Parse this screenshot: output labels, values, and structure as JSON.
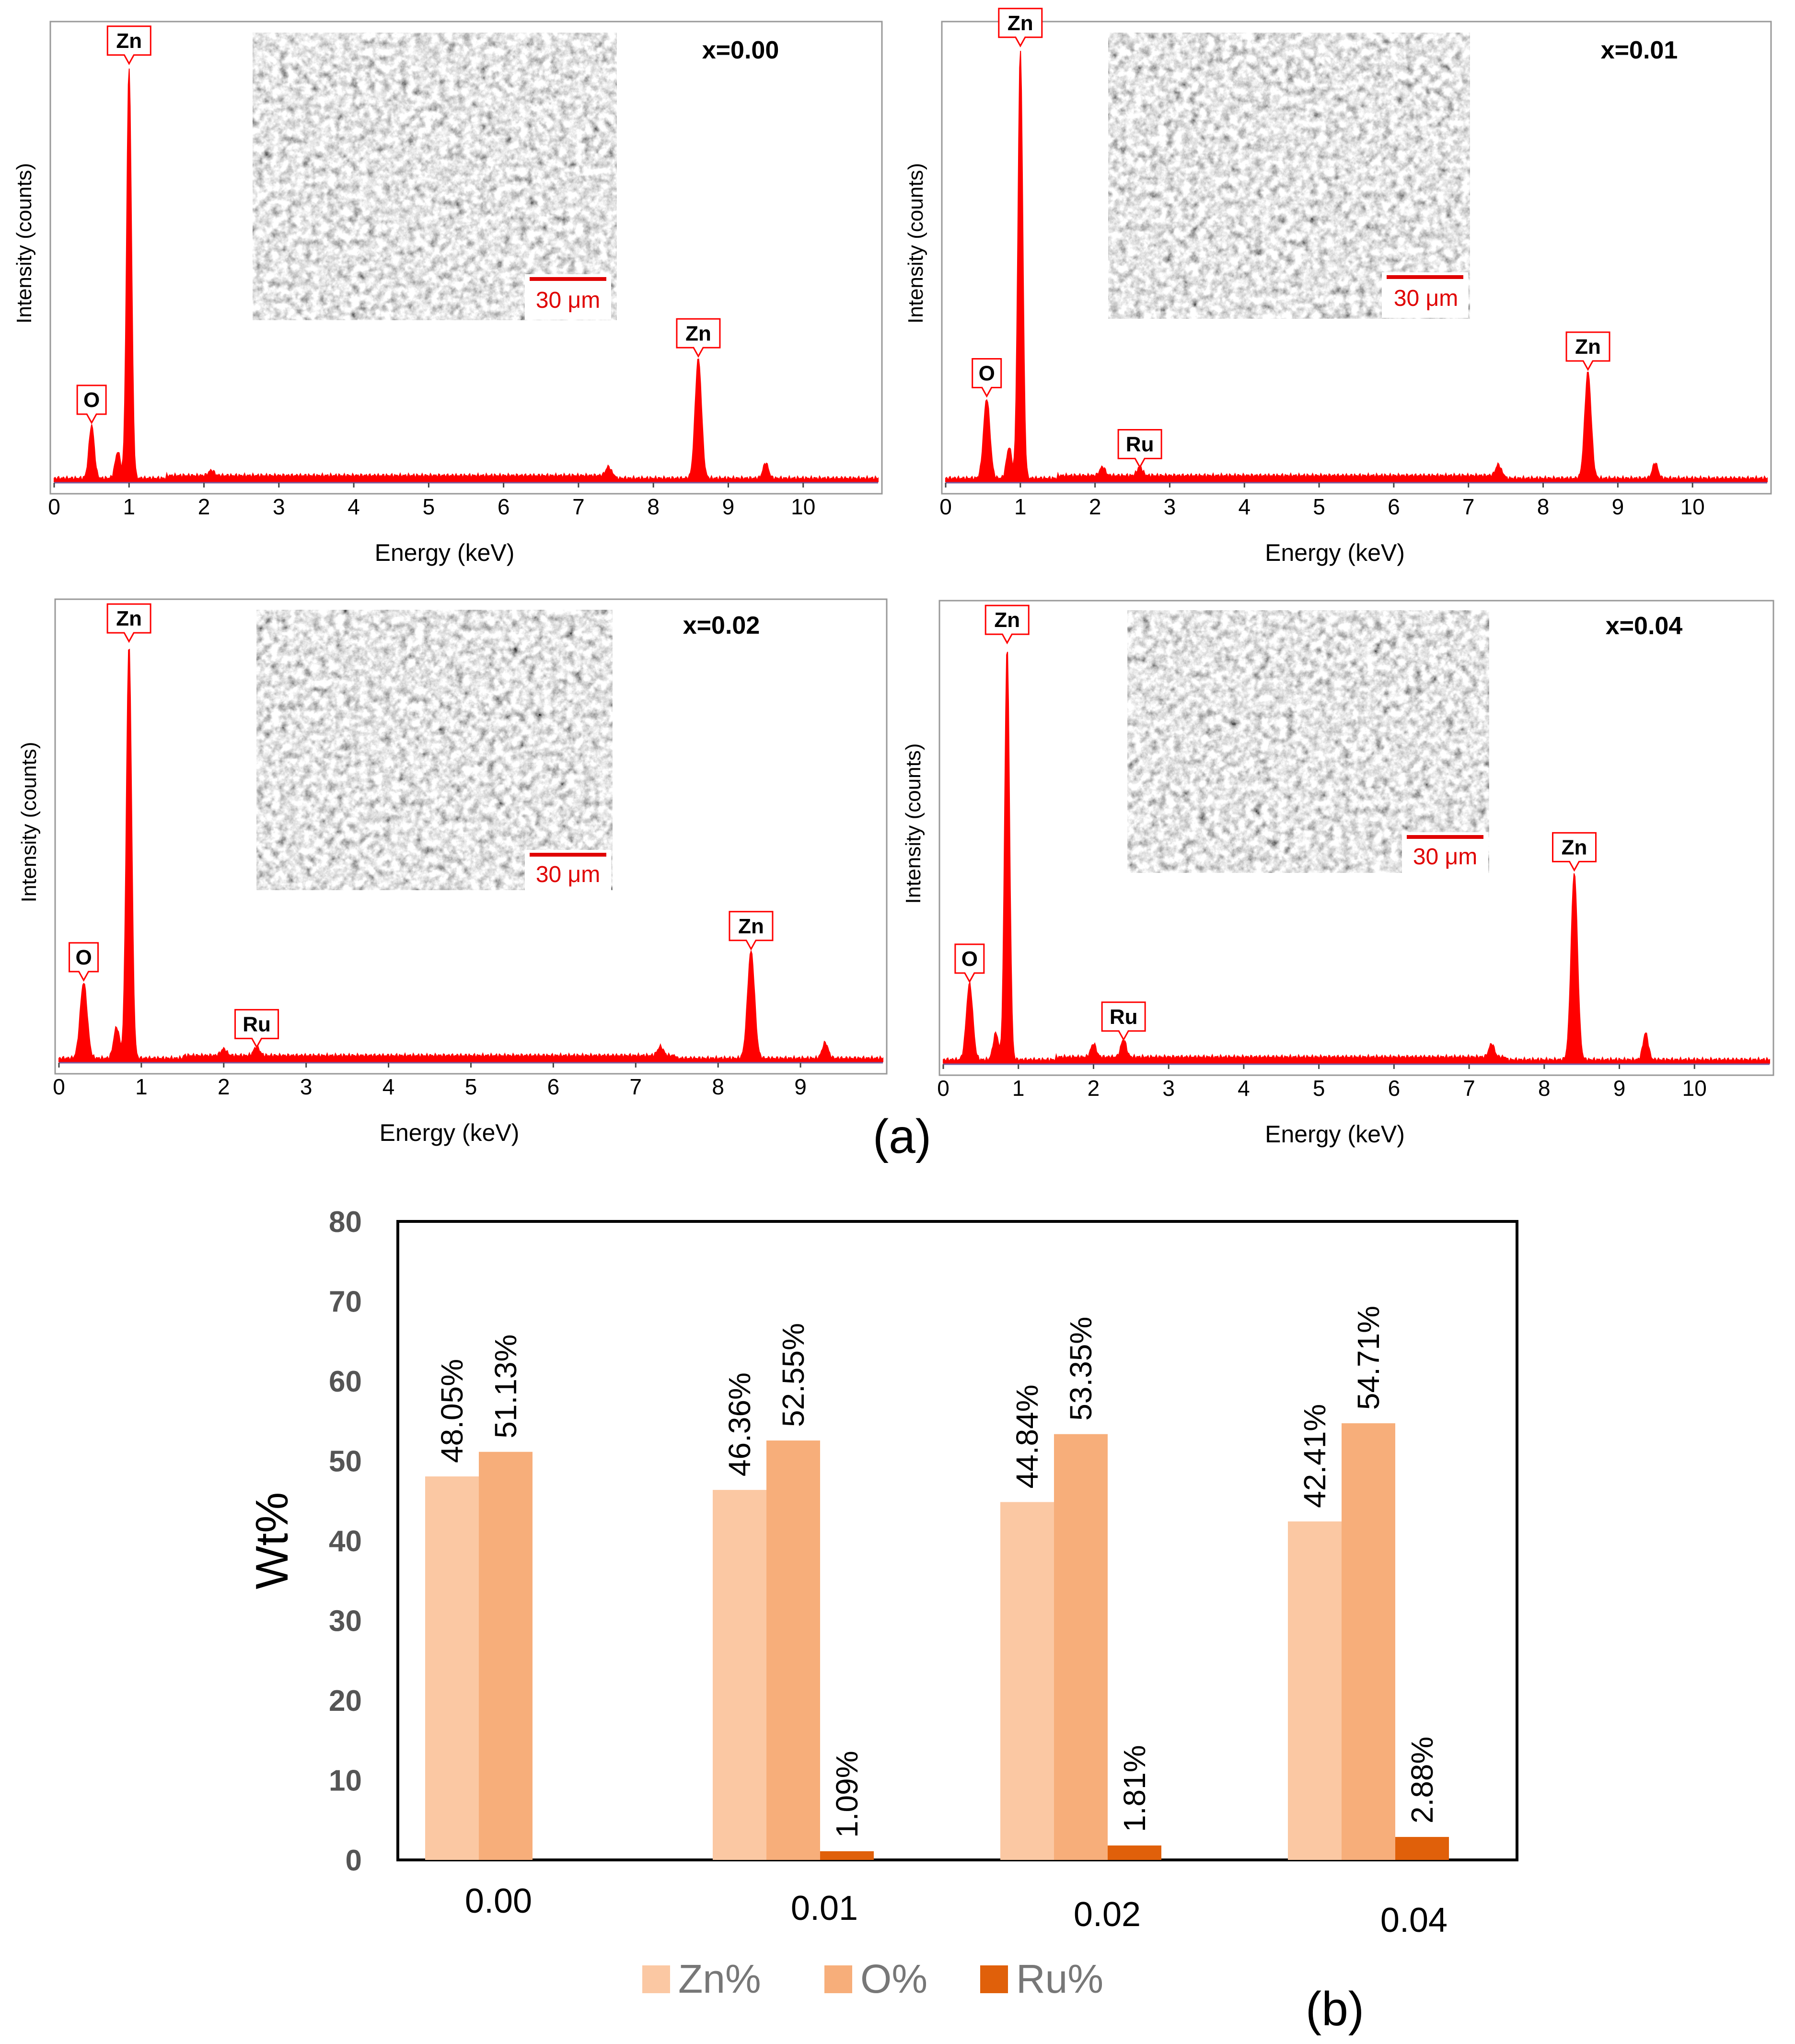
{
  "panel_a_label": "(a)",
  "panel_b_label": "(b)",
  "colors": {
    "spectrum": "#ff0000",
    "zn": "#fbc8a3",
    "o": "#f7ae7a",
    "ru": "#e0600a"
  },
  "chart_data": [
    {
      "type": "line",
      "title": "x=0.00",
      "xlabel": "Energy (keV)",
      "ylabel": "Intensity (counts)",
      "xlim": [
        0,
        11
      ],
      "xticks": [
        "0",
        "1",
        "2",
        "3",
        "4",
        "5",
        "6",
        "7",
        "8",
        "9",
        "10"
      ],
      "peaks": [
        {
          "label": "O",
          "energy": 0.5,
          "height": 0.12
        },
        {
          "label": "Zn",
          "energy": 1.0,
          "height": 0.93
        },
        {
          "label": "Zn",
          "energy": 8.6,
          "height": 0.27
        }
      ],
      "minor_peaks": [
        {
          "energy": 0.85,
          "height": 0.06
        },
        {
          "energy": 2.1,
          "height": 0.012
        },
        {
          "energy": 7.4,
          "height": 0.02
        },
        {
          "energy": 9.5,
          "height": 0.035
        }
      ],
      "scale_bar": "30 μm"
    },
    {
      "type": "line",
      "title": "x=0.01",
      "xlabel": "Energy (keV)",
      "ylabel": "Intensity (counts)",
      "xlim": [
        0,
        11
      ],
      "xticks": [
        "0",
        "1",
        "2",
        "3",
        "4",
        "5",
        "6",
        "7",
        "8",
        "9",
        "10"
      ],
      "peaks": [
        {
          "label": "O",
          "energy": 0.55,
          "height": 0.18
        },
        {
          "label": "Zn",
          "energy": 1.0,
          "height": 0.97
        },
        {
          "label": "Ru",
          "energy": 2.6,
          "height": 0.02
        },
        {
          "label": "Zn",
          "energy": 8.6,
          "height": 0.24
        }
      ],
      "minor_peaks": [
        {
          "energy": 0.85,
          "height": 0.07
        },
        {
          "energy": 2.1,
          "height": 0.02
        },
        {
          "energy": 7.4,
          "height": 0.025
        },
        {
          "energy": 9.5,
          "height": 0.035
        }
      ],
      "scale_bar": "30 μm"
    },
    {
      "type": "line",
      "title": "x=0.02",
      "xlabel": "Energy (keV)",
      "ylabel": "Intensity (counts)",
      "xlim": [
        0,
        10
      ],
      "xticks": [
        "0",
        "1",
        "2",
        "3",
        "4",
        "5",
        "6",
        "7",
        "8",
        "9"
      ],
      "peaks": [
        {
          "label": "O",
          "energy": 0.3,
          "height": 0.17
        },
        {
          "label": "Zn",
          "energy": 0.85,
          "height": 0.93
        },
        {
          "label": "Ru",
          "energy": 2.4,
          "height": 0.02
        },
        {
          "label": "Zn",
          "energy": 8.4,
          "height": 0.24
        }
      ],
      "minor_peaks": [
        {
          "energy": 0.7,
          "height": 0.07
        },
        {
          "energy": 2.0,
          "height": 0.015
        },
        {
          "energy": 7.3,
          "height": 0.02
        },
        {
          "energy": 9.3,
          "height": 0.035
        }
      ],
      "scale_bar": "30 μm"
    },
    {
      "type": "line",
      "title": "x=0.04",
      "xlabel": "Energy (keV)",
      "ylabel": "Intensity (counts)",
      "xlim": [
        0,
        11
      ],
      "xticks": [
        "0",
        "1",
        "2",
        "3",
        "4",
        "5",
        "6",
        "7",
        "8",
        "9",
        "10"
      ],
      "peaks": [
        {
          "label": "O",
          "energy": 0.35,
          "height": 0.17
        },
        {
          "label": "Zn",
          "energy": 0.85,
          "height": 0.93
        },
        {
          "label": "Ru",
          "energy": 2.4,
          "height": 0.04
        },
        {
          "label": "Zn",
          "energy": 8.4,
          "height": 0.42
        }
      ],
      "minor_peaks": [
        {
          "energy": 0.7,
          "height": 0.06
        },
        {
          "energy": 2.0,
          "height": 0.03
        },
        {
          "energy": 7.3,
          "height": 0.03
        },
        {
          "energy": 9.35,
          "height": 0.06
        }
      ],
      "scale_bar": "30 μm"
    },
    {
      "type": "bar",
      "ylabel": "Wt%",
      "ylim": [
        0,
        80
      ],
      "yticks": [
        "0",
        "10",
        "20",
        "30",
        "40",
        "50",
        "60",
        "70",
        "80"
      ],
      "categories": [
        "0.00",
        "0.01",
        "0.02",
        "0.04"
      ],
      "series": [
        {
          "name": "Zn%",
          "values": [
            48.05,
            46.36,
            44.84,
            42.41
          ],
          "labels": [
            "48.05%",
            "46.36%",
            "44.84%",
            "42.41%"
          ]
        },
        {
          "name": "O%",
          "values": [
            51.13,
            52.55,
            53.35,
            54.71
          ],
          "labels": [
            "51.13%",
            "52.55%",
            "53.35%",
            "54.71%"
          ]
        },
        {
          "name": "Ru%",
          "values": [
            0,
            1.09,
            1.81,
            2.88
          ],
          "labels": [
            "",
            "1.09%",
            "1.81%",
            "2.88%"
          ]
        }
      ],
      "legend": "bottom"
    }
  ]
}
